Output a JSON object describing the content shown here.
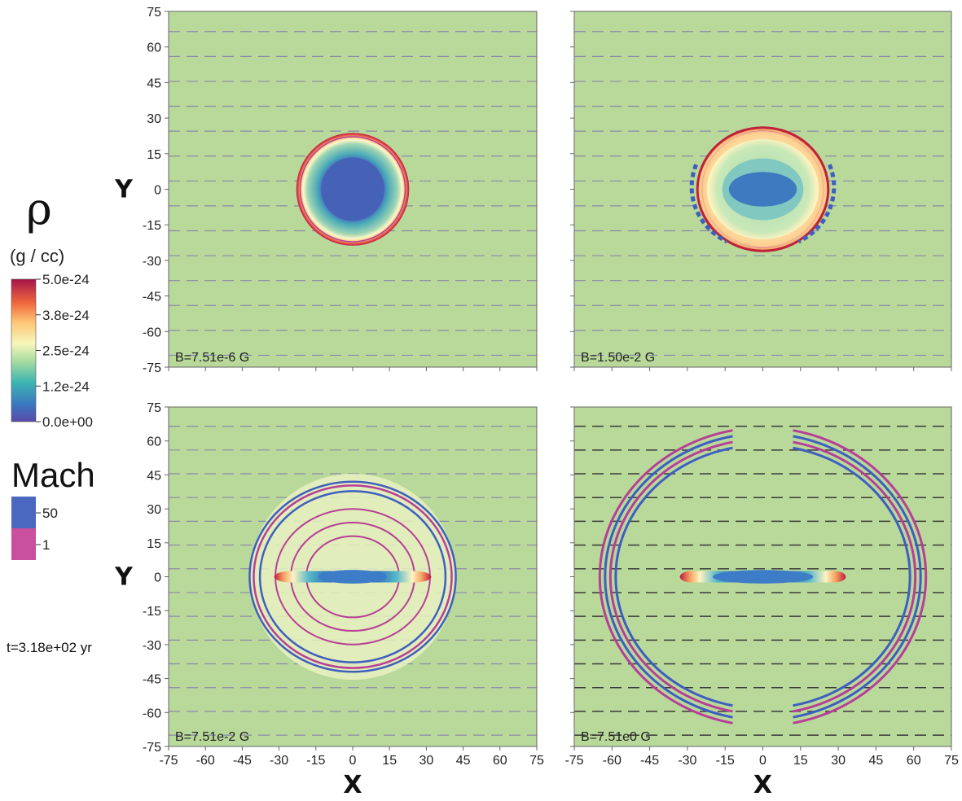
{
  "colorbar_density": {
    "symbol": "ρ",
    "unit": "(g / cc)",
    "ticks": [
      "5.0e-24",
      "3.8e-24",
      "2.5e-24",
      "1.2e-24",
      "0.0e+00"
    ]
  },
  "colorbar_mach": {
    "title": "Mach",
    "ticks": [
      "50",
      "1"
    ],
    "colors": [
      "#4a68c0",
      "#c8509e"
    ]
  },
  "time_label": "t=3.18e+02 yr",
  "colors": {
    "background": "#b8d99a",
    "mach_high": "#3f5fc0",
    "mach_low": "#b83e98",
    "dense": "#c0203a",
    "core": "#3d7cc7"
  },
  "chart_data": [
    {
      "type": "heatmap",
      "label": "B=7.51e-6 G",
      "xlabel": "",
      "ylabel": "Y",
      "xlim": [
        -75,
        75
      ],
      "ylim": [
        -75,
        75
      ],
      "xticks": [],
      "yticks": [
        75,
        60,
        45,
        30,
        15,
        0,
        -15,
        -30,
        -45,
        -60,
        -75
      ],
      "shell_radius": 23,
      "field_line_style": "light"
    },
    {
      "type": "heatmap",
      "label": "B=1.50e-2 G",
      "xlabel": "",
      "ylabel": "",
      "xlim": [
        -75,
        75
      ],
      "ylim": [
        -75,
        75
      ],
      "xticks": [],
      "yticks": [],
      "shell_radius": 26,
      "field_line_style": "light"
    },
    {
      "type": "heatmap",
      "label": "B=7.51e-2 G",
      "xlabel": "X",
      "ylabel": "Y",
      "xlim": [
        -75,
        75
      ],
      "ylim": [
        -75,
        75
      ],
      "xticks": [
        -75,
        -60,
        -45,
        -30,
        -15,
        0,
        15,
        30,
        45,
        60,
        75
      ],
      "yticks": [
        75,
        60,
        45,
        30,
        15,
        0,
        -15,
        -30,
        -45,
        -60,
        -75
      ],
      "shell_radius": 42,
      "field_line_style": "light"
    },
    {
      "type": "heatmap",
      "label": "B=7.51e0 G",
      "xlabel": "X",
      "ylabel": "",
      "xlim": [
        -75,
        75
      ],
      "ylim": [
        -75,
        75
      ],
      "xticks": [
        -75,
        -60,
        -45,
        -30,
        -15,
        0,
        15,
        30,
        45,
        60,
        75
      ],
      "yticks": [],
      "shell_radius": 66,
      "field_line_style": "dark"
    }
  ]
}
